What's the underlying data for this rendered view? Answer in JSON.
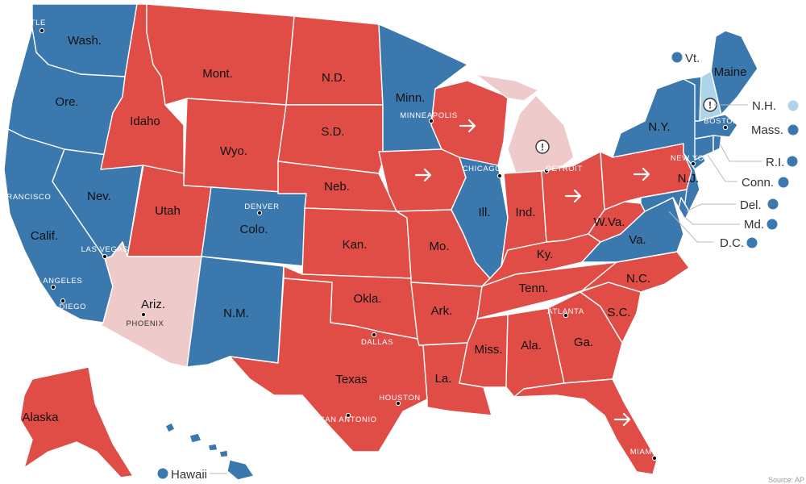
{
  "colors": {
    "dem": "#3a78ad",
    "rep": "#e04c46",
    "lean_rep": "#eecacb",
    "lean_dem": "#aed4ea"
  },
  "icons": {
    "flip": "arrow-right-icon",
    "uncalled": "exclamation-icon"
  },
  "states": {
    "wa": {
      "label": "Wash.",
      "result": "dem"
    },
    "or": {
      "label": "Ore.",
      "result": "dem"
    },
    "ca": {
      "label": "Calif.",
      "result": "dem"
    },
    "nv": {
      "label": "Nev.",
      "result": "dem"
    },
    "id": {
      "label": "Idaho",
      "result": "rep"
    },
    "mt": {
      "label": "Mont.",
      "result": "rep"
    },
    "wy": {
      "label": "Wyo.",
      "result": "rep"
    },
    "ut": {
      "label": "Utah",
      "result": "rep"
    },
    "co": {
      "label": "Colo.",
      "result": "dem"
    },
    "az": {
      "label": "Ariz.",
      "result": "lean_rep"
    },
    "nm": {
      "label": "N.M.",
      "result": "dem"
    },
    "nd": {
      "label": "N.D.",
      "result": "rep"
    },
    "sd": {
      "label": "S.D.",
      "result": "rep"
    },
    "ne": {
      "label": "Neb.",
      "result": "rep"
    },
    "ks": {
      "label": "Kan.",
      "result": "rep"
    },
    "ok": {
      "label": "Okla.",
      "result": "rep"
    },
    "tx": {
      "label": "Texas",
      "result": "rep"
    },
    "mn": {
      "label": "Minn.",
      "result": "dem"
    },
    "ia": {
      "label": "",
      "result": "rep"
    },
    "mo": {
      "label": "Mo.",
      "result": "rep"
    },
    "ar": {
      "label": "Ark.",
      "result": "rep"
    },
    "la": {
      "label": "La.",
      "result": "rep"
    },
    "wi": {
      "label": "",
      "result": "rep"
    },
    "il": {
      "label": "Ill.",
      "result": "dem"
    },
    "mi": {
      "label": "",
      "result": "lean_rep"
    },
    "in": {
      "label": "Ind.",
      "result": "rep"
    },
    "oh": {
      "label": "",
      "result": "rep"
    },
    "ky": {
      "label": "Ky.",
      "result": "rep"
    },
    "tn": {
      "label": "Tenn.",
      "result": "rep"
    },
    "ms": {
      "label": "Miss.",
      "result": "rep"
    },
    "al": {
      "label": "Ala.",
      "result": "rep"
    },
    "ga": {
      "label": "Ga.",
      "result": "rep"
    },
    "fl": {
      "label": "",
      "result": "rep"
    },
    "sc": {
      "label": "S.C.",
      "result": "rep"
    },
    "nc": {
      "label": "N.C.",
      "result": "rep"
    },
    "va": {
      "label": "Va.",
      "result": "dem"
    },
    "wv": {
      "label": "W.Va.",
      "result": "rep"
    },
    "pa": {
      "label": "",
      "result": "rep"
    },
    "ny": {
      "label": "N.Y.",
      "result": "dem"
    },
    "nj": {
      "label": "N.J.",
      "result": "dem"
    },
    "md": {
      "label": "",
      "result": "dem"
    },
    "de": {
      "label": "",
      "result": "dem"
    },
    "ct": {
      "label": "",
      "result": "dem"
    },
    "ri": {
      "label": "",
      "result": "dem"
    },
    "ma": {
      "label": "",
      "result": "dem"
    },
    "vt": {
      "label": "",
      "result": "dem"
    },
    "nh": {
      "label": "",
      "result": "lean_dem"
    },
    "me": {
      "label": "Maine",
      "result": "dem"
    },
    "ak": {
      "label": "Alaska",
      "result": "rep"
    },
    "hi": {
      "label": "",
      "result": "dem"
    }
  },
  "small_states": {
    "vt": {
      "label": "Vt.",
      "result": "dem"
    },
    "nh": {
      "label": "N.H.",
      "result": "lean_dem"
    },
    "ma": {
      "label": "Mass.",
      "result": "dem"
    },
    "ri": {
      "label": "R.I.",
      "result": "dem"
    },
    "ct": {
      "label": "Conn.",
      "result": "dem"
    },
    "de": {
      "label": "Del.",
      "result": "dem"
    },
    "md": {
      "label": "Md.",
      "result": "dem"
    },
    "dc": {
      "label": "D.C.",
      "result": "dem"
    },
    "hi": {
      "label": "Hawaii",
      "result": "dem"
    }
  },
  "cities": {
    "seattle": "SEATTLE",
    "san_francisco": "FRANCISCO",
    "las_vegas": "LAS VEGAS",
    "los_angeles": "LOS ANGELES",
    "san_diego": "SAN DIEGO",
    "phoenix": "PHOENIX",
    "denver": "DENVER",
    "minneapolis": "MINNEAPOLIS",
    "chicago": "CHICAGO",
    "detroit": "DETROIT",
    "dallas": "DALLAS",
    "houston": "HOUSTON",
    "san_antonio": "SAN ANTONIO",
    "atlanta": "ATLANTA",
    "miami": "MIAMI",
    "new_york": "NEW YORK",
    "boston": "BOSTON"
  },
  "credit": "Source: AP"
}
